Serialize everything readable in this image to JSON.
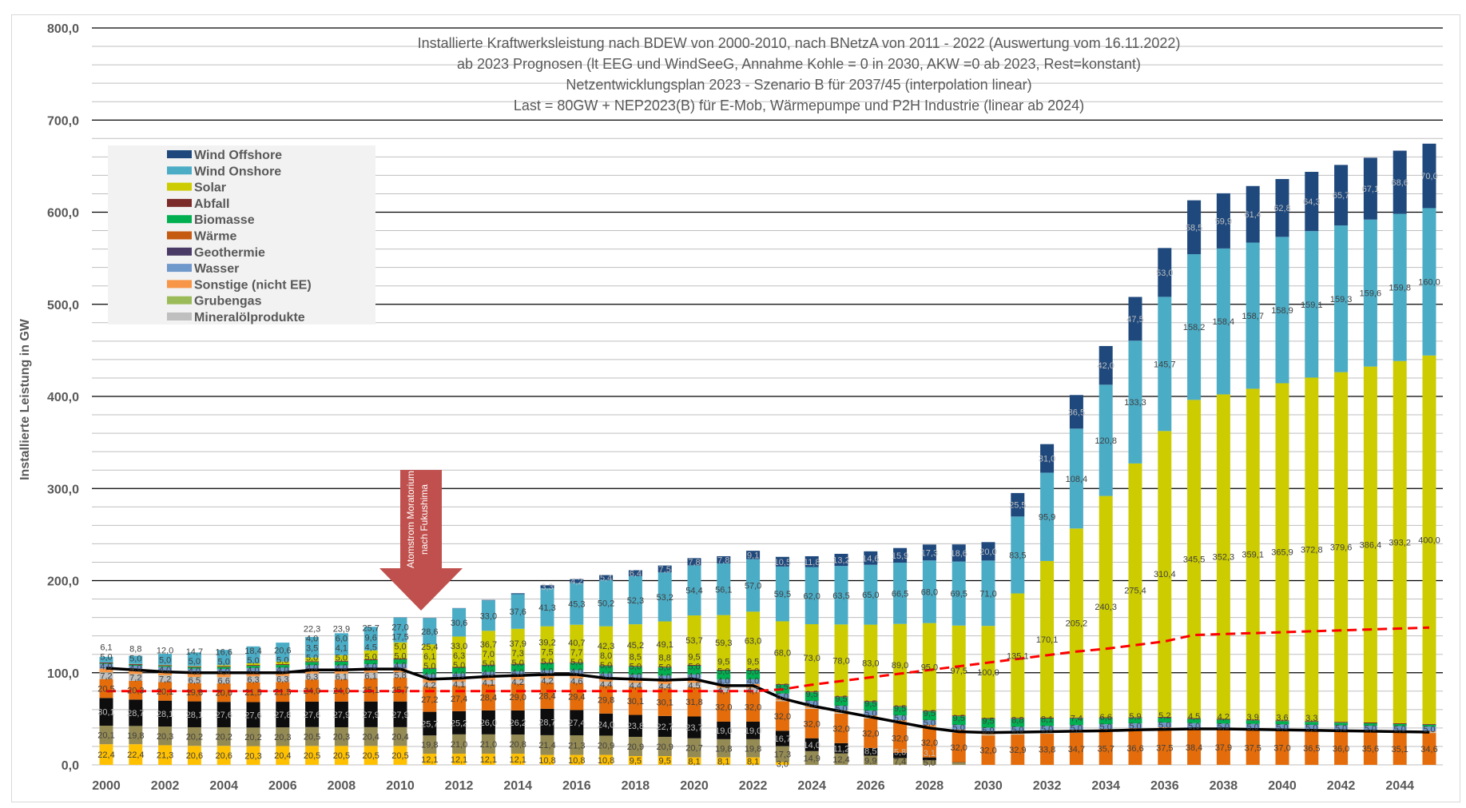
{
  "chart_data": {
    "type": "bar",
    "stacked": true,
    "title_lines": [
      "Installierte Kraftwerksleistung nach BDEW von 2000-2010, nach BNetzA von 2011 - 2022 (Auswertung vom 16.11.2022)",
      "ab 2023 Prognosen (lt EEG und WindSeeG, Annahme Kohle = 0 in 2030, AKW =0 ab 2023, Rest=konstant)",
      "Netzentwicklungsplan 2023 - Szenario B für 2037/45 (interpolation linear)",
      "Last = 80GW + NEP2023(B) für E-Mob, Wärmepumpe und P2H Industrie (linear ab 2024)"
    ],
    "ylabel": "Installierte Leistung in GW",
    "xlabel": "",
    "ylim": [
      0,
      800
    ],
    "grid": {
      "major": 100,
      "minor": 20
    },
    "yticks": [
      "0,0",
      "100,0",
      "200,0",
      "300,0",
      "400,0",
      "500,0",
      "600,0",
      "700,0",
      "800,0"
    ],
    "xticks": [
      "2000",
      "2002",
      "2004",
      "2006",
      "2008",
      "2010",
      "2012",
      "2014",
      "2016",
      "2018",
      "2020",
      "2022",
      "2024",
      "2026",
      "2028",
      "2030",
      "2032",
      "2034",
      "2036",
      "2038",
      "2040",
      "2042",
      "2044"
    ],
    "categories": [
      2000,
      2001,
      2002,
      2003,
      2004,
      2005,
      2006,
      2007,
      2008,
      2009,
      2010,
      2011,
      2012,
      2013,
      2014,
      2015,
      2016,
      2017,
      2018,
      2019,
      2020,
      2021,
      2022,
      2023,
      2024,
      2025,
      2026,
      2027,
      2028,
      2029,
      2030,
      2031,
      2032,
      2033,
      2034,
      2035,
      2036,
      2037,
      2038,
      2039,
      2040,
      2041,
      2042,
      2043,
      2044,
      2045
    ],
    "legend_position": "top-left",
    "legend": [
      "Wind Offshore",
      "Wind Onshore",
      "Solar",
      "Abfall",
      "Biomasse",
      "Wärme",
      "Geothermie",
      "Wasser",
      "Sonstige (nicht EE)",
      "Grubengas",
      "Mineralölprodukte"
    ],
    "series": [
      {
        "name": null,
        "color": "#ffc000",
        "values": [
          22.4,
          22.4,
          21.3,
          20.6,
          20.6,
          20.3,
          20.4,
          20.5,
          20.5,
          20.5,
          20.5,
          12.1,
          12.1,
          12.1,
          12.1,
          10.8,
          10.8,
          10.8,
          9.5,
          9.5,
          8.1,
          8.1,
          8.1,
          3.0,
          0,
          0,
          0,
          0,
          0,
          0,
          0,
          0,
          0,
          0,
          0,
          0,
          0,
          0,
          0,
          0,
          0,
          0,
          0,
          0,
          0,
          0
        ]
      },
      {
        "name": null,
        "color": "#948a54",
        "values": [
          20.1,
          19.8,
          20.3,
          20.2,
          20.2,
          20.2,
          20.3,
          20.5,
          20.3,
          20.4,
          20.4,
          19.8,
          21.0,
          21.0,
          20.8,
          21.4,
          21.3,
          20.9,
          20.9,
          20.9,
          20.7,
          19.8,
          19.8,
          17.3,
          14.9,
          12.4,
          9.9,
          7.4,
          5.0,
          2.5,
          0,
          0,
          0,
          0,
          0,
          0,
          0,
          0,
          0,
          0,
          0,
          0,
          0,
          0,
          0,
          0
        ]
      },
      {
        "name": null,
        "color": "#0d0d0d",
        "values": [
          30.1,
          28.7,
          28.1,
          28.1,
          27.6,
          27.6,
          27.8,
          27.6,
          27.9,
          27.9,
          27.9,
          25.7,
          25.2,
          26.0,
          26.2,
          28.7,
          27.4,
          24.0,
          23.8,
          22.7,
          23.7,
          19.0,
          19.0,
          16.7,
          14.0,
          11.2,
          8.5,
          5.8,
          3.1,
          0.4,
          0,
          0,
          0,
          0,
          0,
          0,
          0,
          0,
          0,
          0,
          0,
          0,
          0,
          0,
          0,
          0
        ]
      },
      {
        "name": null,
        "color": "#e46c0a",
        "values": [
          20.5,
          20.3,
          20.1,
          19.8,
          20.0,
          21.5,
          21.5,
          24.0,
          24.0,
          25.1,
          25.7,
          27.2,
          27.4,
          28.4,
          29.0,
          28.4,
          29.4,
          29.8,
          30.1,
          30.1,
          31.8,
          32.0,
          32.0,
          32.0,
          32.0,
          32.0,
          32.0,
          32.0,
          32.0,
          32.0,
          32.0,
          32.9,
          33.8,
          34.7,
          35.7,
          36.6,
          37.5,
          38.4,
          37.9,
          37.5,
          37.0,
          36.5,
          36.0,
          35.6,
          35.1,
          34.6
        ]
      },
      {
        "name": "Mineralölprodukte",
        "color": "#bfbfbf",
        "values": [
          7.2,
          7.2,
          7.2,
          6.5,
          6.6,
          6.3,
          6.3,
          6.3,
          6.1,
          6.1,
          5.8,
          4.2,
          4.1,
          4.1,
          4.2,
          4.2,
          4.6,
          4.4,
          4.4,
          4.4,
          4.5,
          4.7,
          4.7,
          0.8,
          0.8,
          0.8,
          0.8,
          0.8,
          0.8,
          0.8,
          0.8,
          0.8,
          0.8,
          0.8,
          0.8,
          0.8,
          0.8,
          0.8,
          0.8,
          0.8,
          0.8,
          0.8,
          0.8,
          0.8,
          0.8,
          0.8
        ]
      },
      {
        "name": "Grubengas",
        "color": "#9bbb59",
        "values": [
          0.2,
          0.2,
          0.2,
          0.2,
          0.2,
          0.2,
          0.2,
          0.2,
          0.2,
          0.2,
          0.2,
          0.2,
          0.2,
          0.2,
          0.2,
          0.2,
          0.2,
          0.2,
          0.2,
          0.2,
          0.2,
          0.2,
          0.2,
          0.2,
          0.2,
          0.2,
          0.2,
          0.2,
          0.2,
          0.2,
          0.2,
          0.2,
          0.2,
          0.2,
          0.2,
          0.2,
          0.2,
          0.2,
          0.2,
          0.2,
          0.2,
          0.2,
          0.2,
          0.2,
          0.2,
          0.2
        ]
      },
      {
        "name": "Sonstige (nicht EE)",
        "color": "#f79646",
        "values": [
          4.0,
          4.0,
          4.0,
          4.0,
          4.0,
          4.0,
          4.0,
          4.0,
          4.0,
          4.0,
          4.0,
          4.0,
          4.0,
          4.0,
          4.0,
          4.0,
          4.0,
          4.0,
          4.0,
          4.0,
          4.0,
          4.0,
          4.0,
          2.3,
          2.3,
          2.3,
          2.3,
          2.3,
          2.3,
          2.3,
          2.3,
          2.3,
          2.3,
          2.3,
          2.3,
          2.3,
          2.3,
          0.8,
          0.8,
          0.8,
          0.8,
          0.8,
          0.8,
          0.8,
          0.8,
          0.8
        ]
      },
      {
        "name": "Wasser",
        "color": "#6f98cb",
        "values": [
          5.0,
          5.0,
          5.0,
          5.0,
          5.0,
          5.0,
          5.0,
          5.0,
          5.0,
          5.0,
          5.0,
          5.0,
          5.0,
          5.0,
          5.0,
          5.0,
          5.0,
          5.0,
          5.0,
          5.0,
          5.0,
          5.0,
          5.0,
          5.0,
          5.0,
          5.0,
          5.0,
          5.0,
          5.0,
          5.0,
          5.0,
          5.0,
          5.0,
          5.0,
          5.0,
          5.0,
          5.0,
          5.0,
          5.0,
          5.0,
          5.0,
          5.0,
          5.0,
          5.0,
          5.0,
          5.0
        ]
      },
      {
        "name": "Geothermie",
        "color": "#4a3b66",
        "values": [
          0,
          0,
          0,
          0,
          0,
          0,
          0,
          0,
          0,
          0,
          0,
          0.1,
          0.1,
          0.1,
          0.1,
          0.1,
          0.1,
          0.1,
          0.1,
          0.1,
          0.1,
          0.1,
          0.1,
          0.1,
          0.1,
          0.1,
          0.1,
          0.1,
          0.1,
          0.1,
          0.1,
          0.1,
          0.1,
          0.1,
          0.1,
          0.1,
          0.1,
          0.1,
          0.1,
          0.1,
          0.1,
          0.1,
          0.1,
          0.1,
          0.1,
          0.1
        ]
      },
      {
        "name": "Wärme",
        "color": "#c55a11",
        "values": [
          0,
          0,
          0,
          0,
          0,
          0,
          0,
          0,
          0,
          0,
          0,
          0,
          0,
          0,
          0,
          0,
          0,
          0,
          0,
          0,
          0,
          0,
          0,
          0,
          0,
          0,
          0,
          0,
          0,
          0,
          0,
          0,
          0,
          0,
          0,
          0,
          0,
          0,
          0,
          0,
          0,
          0,
          0,
          0,
          0,
          0
        ]
      },
      {
        "name": "Biomasse",
        "color": "#00b050",
        "values": [
          0.7,
          0.9,
          1.2,
          1.6,
          2.0,
          2.4,
          2.9,
          3.5,
          4.1,
          4.5,
          5.0,
          6.1,
          6.3,
          7.0,
          7.3,
          7.5,
          7.7,
          8.0,
          8.5,
          8.8,
          9.5,
          9.5,
          9.5,
          9.5,
          9.5,
          9.5,
          9.5,
          9.5,
          9.5,
          9.5,
          9.5,
          8.8,
          8.1,
          7.4,
          6.6,
          5.9,
          5.2,
          4.5,
          4.2,
          3.9,
          3.6,
          3.3,
          2.9,
          2.6,
          2.3,
          2.0
        ]
      },
      {
        "name": "Abfall",
        "color": "#7b2c2a",
        "values": [
          0.9,
          0.9,
          0.9,
          0.9,
          0.9,
          0.9,
          0.9,
          0.9,
          0.9,
          0.9,
          0.9,
          0.9,
          0.9,
          0.9,
          0.9,
          0.9,
          0.9,
          0.9,
          0.9,
          0.9,
          0.9,
          0.9,
          0.9,
          0.9,
          0.9,
          0.9,
          0.9,
          0.9,
          0.9,
          0.9,
          0.9,
          0.9,
          0.9,
          0.9,
          0.9,
          0.9,
          0.9,
          0.9,
          0.9,
          0.9,
          0.9,
          0.9,
          0.9,
          0.9,
          0.9,
          0.9
        ]
      },
      {
        "name": "Solar",
        "color": "#cccc00",
        "values": [
          0.1,
          0.2,
          0.3,
          0.4,
          1.1,
          1.8,
          2.8,
          4.0,
          6.0,
          9.6,
          17.5,
          25.4,
          33.0,
          36.7,
          37.9,
          39.2,
          40.7,
          42.3,
          45.2,
          49.1,
          53.7,
          59.3,
          63.0,
          68.0,
          73.0,
          78.0,
          83.0,
          89.0,
          95.0,
          97.5,
          100.0,
          135.1,
          170.1,
          205.2,
          240.3,
          275.4,
          310.4,
          345.5,
          352.3,
          359.1,
          365.9,
          372.8,
          379.6,
          386.4,
          393.2,
          400.0
        ]
      },
      {
        "name": "Wind Onshore",
        "color": "#4bacc6",
        "values": [
          6.1,
          8.8,
          12.0,
          14.7,
          16.6,
          18.4,
          20.6,
          22.3,
          23.9,
          25.7,
          27.0,
          28.6,
          30.6,
          33.0,
          37.6,
          41.3,
          45.3,
          50.2,
          52.3,
          53.2,
          54.4,
          56.1,
          57.0,
          59.5,
          62.0,
          63.5,
          65.0,
          66.5,
          68.0,
          69.5,
          71.0,
          83.5,
          95.9,
          108.4,
          120.8,
          133.3,
          145.7,
          158.2,
          158.4,
          158.7,
          158.9,
          159.1,
          159.3,
          159.6,
          159.8,
          160.0
        ]
      },
      {
        "name": "Wind Offshore",
        "color": "#1f497d",
        "values": [
          0,
          0,
          0,
          0,
          0,
          0,
          0,
          0,
          0,
          0,
          0.2,
          0.2,
          0.3,
          0.5,
          1.0,
          3.3,
          4.2,
          5.4,
          6.4,
          7.5,
          7.8,
          7.8,
          9.1,
          10.5,
          11.8,
          13.2,
          14.6,
          15.9,
          17.3,
          18.6,
          20.0,
          25.5,
          31.0,
          36.5,
          42.0,
          47.5,
          53.0,
          58.5,
          59.9,
          61.4,
          62.8,
          64.3,
          65.7,
          67.1,
          68.6,
          70.0
        ]
      }
    ],
    "lines": [
      {
        "name": null,
        "color": "#000000",
        "style": "solid",
        "values": [
          105,
          103,
          101,
          100,
          100,
          100,
          100,
          103,
          103,
          104,
          104,
          93,
          94,
          96,
          97,
          98,
          98,
          94,
          93,
          92,
          93,
          86,
          86,
          72,
          64,
          58,
          52,
          46,
          40,
          36,
          35,
          35.5,
          36,
          36.5,
          37,
          38,
          38.5,
          39,
          39,
          38.5,
          38,
          37.5,
          37,
          36.5,
          36,
          35.5
        ]
      },
      {
        "name": null,
        "color": "#ff0000",
        "style": "dashed",
        "values": [
          80,
          80,
          80,
          80,
          80,
          80,
          80,
          80,
          80,
          80,
          80,
          80,
          80,
          80,
          80,
          80,
          80,
          80,
          80,
          80,
          80,
          80,
          80,
          82,
          87,
          91,
          95,
          99,
          103,
          107,
          111,
          115,
          119,
          123,
          126,
          130,
          134,
          141,
          142,
          143,
          144,
          145,
          146,
          147,
          148,
          149
        ]
      }
    ],
    "annotation": {
      "lines": [
        "Atomstrom Moratorium",
        "nach Fukushima"
      ],
      "year": 2011,
      "color": "#c0504d"
    }
  }
}
